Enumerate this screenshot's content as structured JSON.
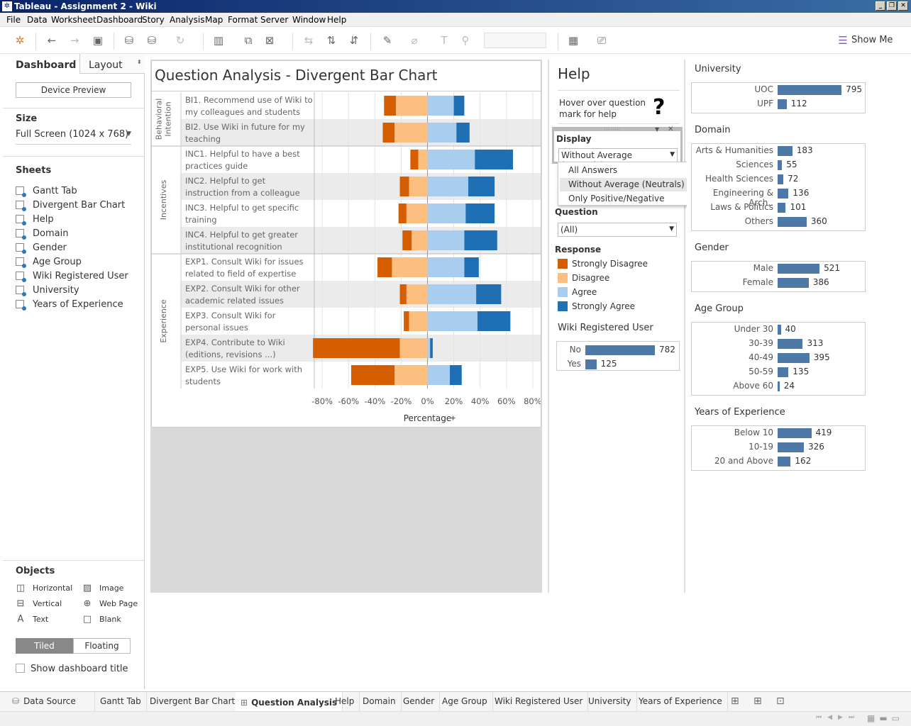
{
  "window": {
    "title": "Tableau - Assignment 2 - Wiki"
  },
  "menu": [
    "File",
    "Data",
    "Worksheet",
    "Dashboard",
    "Story",
    "Analysis",
    "Map",
    "Format",
    "Server",
    "Window",
    "Help"
  ],
  "toolbar": {
    "show_me": "Show Me"
  },
  "left_panel": {
    "tabs": [
      "Dashboard",
      "Layout"
    ],
    "device_preview": "Device Preview",
    "size_title": "Size",
    "size_value": "Full Screen (1024 x 768)",
    "sheets_title": "Sheets",
    "sheets": [
      "Gantt Tab",
      "Divergent Bar Chart",
      "Help",
      "Domain",
      "Gender",
      "Age Group",
      "Wiki Registered User",
      "University",
      "Years of Experience"
    ],
    "objects_title": "Objects",
    "objects": [
      {
        "label": "Horizontal",
        "icon": "horizontal-icon"
      },
      {
        "label": "Image",
        "icon": "image-icon"
      },
      {
        "label": "Vertical",
        "icon": "vertical-icon"
      },
      {
        "label": "Web Page",
        "icon": "web-page-icon"
      },
      {
        "label": "Text",
        "icon": "text-icon"
      },
      {
        "label": "Blank",
        "icon": "blank-icon"
      }
    ],
    "tiled": "Tiled",
    "floating": "Floating",
    "show_title": "Show dashboard title"
  },
  "main_chart": {
    "title": "Question Analysis - Divergent Bar Chart",
    "axis_label": "Percentage",
    "ticks": [
      "-80%",
      "-60%",
      "-40%",
      "-20%",
      "0%",
      "20%",
      "40%",
      "60%",
      "80%"
    ],
    "groups": [
      {
        "name": "Behavioral Intention",
        "lines": [
          "Behavioral",
          "Intention"
        ],
        "rows": 2
      },
      {
        "name": "Incentives",
        "lines": [
          "Incentives"
        ],
        "rows": 4
      },
      {
        "name": "Experience",
        "lines": [
          "Experience"
        ],
        "rows": 5
      }
    ]
  },
  "chart_data": {
    "type": "bar",
    "orientation": "horizontal-diverging",
    "xlabel": "Percentage",
    "xlim": [
      -86,
      86
    ],
    "categories": [
      "BI1. Recommend use of Wiki to my colleagues and students",
      "BI2. Use Wiki in future for my teaching",
      "INC1. Helpful to have a best practices guide",
      "INC2. Helpful to get instruction from a colleague",
      "INC3. Helpful to get specific training",
      "INC4. Helpful to get greater institutional recognition",
      "EXP1. Consult Wiki for issues related to field of expertise",
      "EXP2. Consult Wiki for other academic related issues",
      "EXP3. Consult Wiki for personal issues",
      "EXP4. Contribute to Wiki (editions, revisions ...)",
      "EXP5. Use Wiki for work with students"
    ],
    "series": [
      {
        "name": "Strongly Disagree",
        "color": "#d55e00",
        "values": [
          -9,
          -9,
          -6,
          -7,
          -6,
          -7,
          -11,
          -5,
          -4,
          -66,
          -33
        ]
      },
      {
        "name": "Disagree",
        "color": "#fdbf80",
        "values": [
          -24,
          -25,
          -7,
          -14,
          -16,
          -12,
          -27,
          -16,
          -14,
          -21,
          -25
        ]
      },
      {
        "name": "Agree",
        "color": "#a8cdee",
        "values": [
          20,
          22,
          36,
          31,
          29,
          28,
          28,
          37,
          38,
          2,
          17
        ]
      },
      {
        "name": "Strongly Agree",
        "color": "#1f6fb4",
        "values": [
          8,
          10,
          29,
          20,
          22,
          25,
          11,
          19,
          25,
          2,
          9
        ]
      }
    ]
  },
  "right_panel": {
    "help_title": "Help",
    "help_text": "Hover over question mark for help",
    "display_title": "Display",
    "display_value": "Without Average (Neutrals)",
    "display_options": [
      "All Answers",
      "Without Average (Neutrals)",
      "Only Positive/Negative"
    ],
    "question_title": "Question",
    "question_value": "(All)",
    "response_title": "Response",
    "wiki_title": "Wiki Registered User",
    "wiki": [
      {
        "label": "No",
        "value": 782
      },
      {
        "label": "Yes",
        "value": 125
      }
    ]
  },
  "far_panel": {
    "groups": [
      {
        "title": "University",
        "items": [
          {
            "label": "UOC",
            "value": 795
          },
          {
            "label": "UPF",
            "value": 112
          }
        ]
      },
      {
        "title": "Domain",
        "items": [
          {
            "label": "Arts & Humanities",
            "value": 183
          },
          {
            "label": "Sciences",
            "value": 55
          },
          {
            "label": "Health Sciences",
            "value": 72
          },
          {
            "label": "Engineering & Arch..",
            "value": 136
          },
          {
            "label": "Laws & Politics",
            "value": 101
          },
          {
            "label": "Others",
            "value": 360
          }
        ]
      },
      {
        "title": "Gender",
        "items": [
          {
            "label": "Male",
            "value": 521
          },
          {
            "label": "Female",
            "value": 386
          }
        ]
      },
      {
        "title": "Age Group",
        "items": [
          {
            "label": "Under 30",
            "value": 40
          },
          {
            "label": "30-39",
            "value": 313
          },
          {
            "label": "40-49",
            "value": 395
          },
          {
            "label": "50-59",
            "value": 135
          },
          {
            "label": "Above 60",
            "value": 24
          }
        ]
      },
      {
        "title": "Years of Experience",
        "items": [
          {
            "label": "Below 10",
            "value": 419
          },
          {
            "label": "10-19",
            "value": 326
          },
          {
            "label": "20 and Above",
            "value": 162
          }
        ]
      }
    ]
  },
  "bottom_tabs": [
    "Data Source",
    "Gantt Tab",
    "Divergent Bar Chart",
    "Question Analysis",
    "Help",
    "Domain",
    "Gender",
    "Age Group",
    "Wiki Registered User",
    "University",
    "Years of Experience"
  ],
  "active_tab": "Question Analysis"
}
